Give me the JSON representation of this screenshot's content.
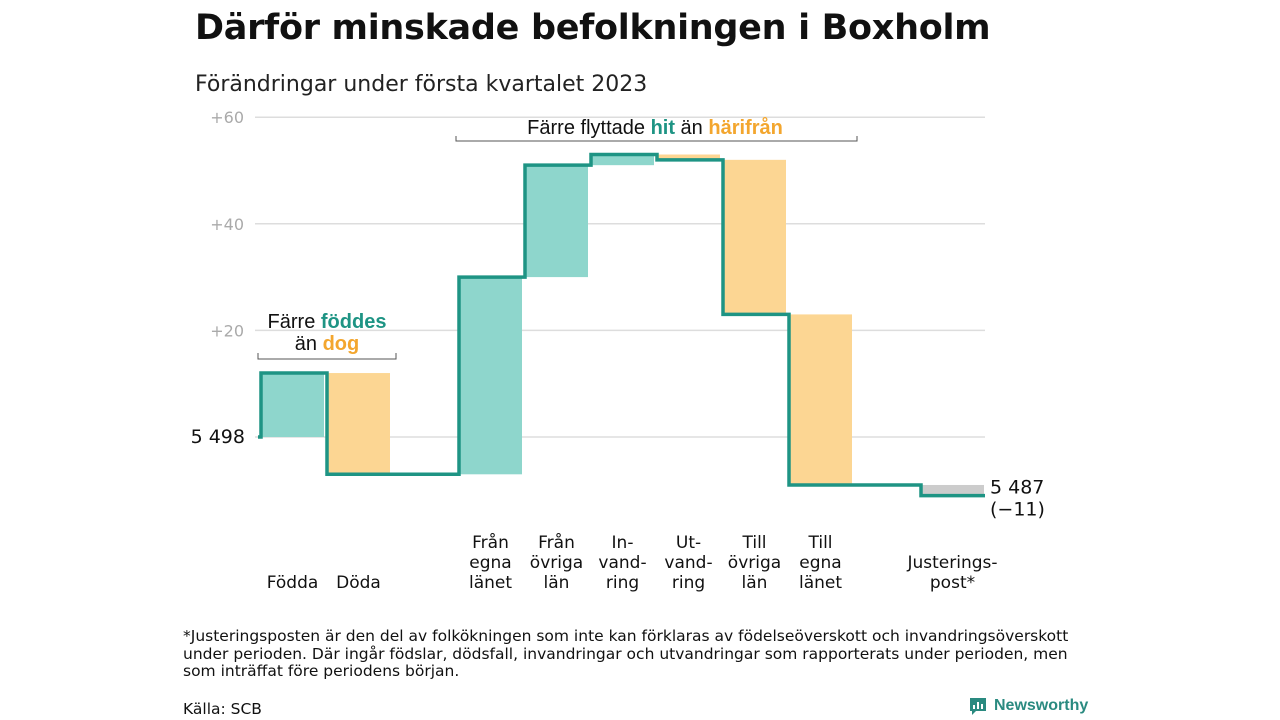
{
  "title": "Därför minskade befolkningen i Boxholm",
  "subtitle": "Förändringar under första kvartalet 2023",
  "footnote": "*Justeringsposten är den del av folkökningen som inte kan förklaras av födelseöverskott och invandringsöverskott under perioden. Där ingår födslar, dödsfall, invandringar och utvandringar som rapporterats under perioden, men som inträffat före periodens början.",
  "source": "Källa: SCB",
  "logo_text": "Newsworthy",
  "colors": {
    "increase": "#8ed6cc",
    "decrease": "#fcd693",
    "adjustment": "#cccccc",
    "line": "#1e9484",
    "teal_text": "#1e9484",
    "orange_text": "#f3a62e"
  },
  "annotations": {
    "births": {
      "line1_prefix": "Färre ",
      "line1_highlight": "föddes",
      "line2_prefix": "än ",
      "line2_highlight": "dog"
    },
    "moves": {
      "prefix": "Färre flyttade ",
      "highlight1": "hit",
      "middle": " än ",
      "highlight2": "härifrån"
    }
  },
  "chart_data": {
    "type": "waterfall",
    "title": "Därför minskade befolkningen i Boxholm",
    "subtitle": "Förändringar under första kvartalet 2023",
    "start": {
      "label": "5 498",
      "value": 0
    },
    "end": {
      "label": "5 487",
      "sublabel": "(−11)",
      "value": -11
    },
    "y_ticks": [
      "+60",
      "+40",
      "+20"
    ],
    "y_tick_values": [
      60,
      40,
      20
    ],
    "ylim": [
      -14,
      60
    ],
    "grid": true,
    "categories": [
      {
        "label": [
          "Födda"
        ],
        "value": 12,
        "kind": "increase"
      },
      {
        "label": [
          "Döda"
        ],
        "value": -19,
        "kind": "decrease"
      },
      {
        "label": [],
        "value": 0,
        "kind": "gap"
      },
      {
        "label": [
          "Från",
          "egna",
          "länet"
        ],
        "value": 37,
        "kind": "increase"
      },
      {
        "label": [
          "Från",
          "övriga",
          "län"
        ],
        "value": 21,
        "kind": "increase"
      },
      {
        "label": [
          "In-",
          "vand-",
          "ring"
        ],
        "value": 2,
        "kind": "increase"
      },
      {
        "label": [
          "Ut-",
          "vand-",
          "ring"
        ],
        "value": -1,
        "kind": "decrease"
      },
      {
        "label": [
          "Till",
          "övriga",
          "län"
        ],
        "value": -29,
        "kind": "decrease"
      },
      {
        "label": [
          "Till",
          "egna",
          "länet"
        ],
        "value": -32,
        "kind": "decrease"
      },
      {
        "label": [],
        "value": 0,
        "kind": "gap"
      },
      {
        "label": [
          "Justerings-",
          "post*"
        ],
        "value": -2,
        "kind": "adjustment"
      }
    ]
  }
}
